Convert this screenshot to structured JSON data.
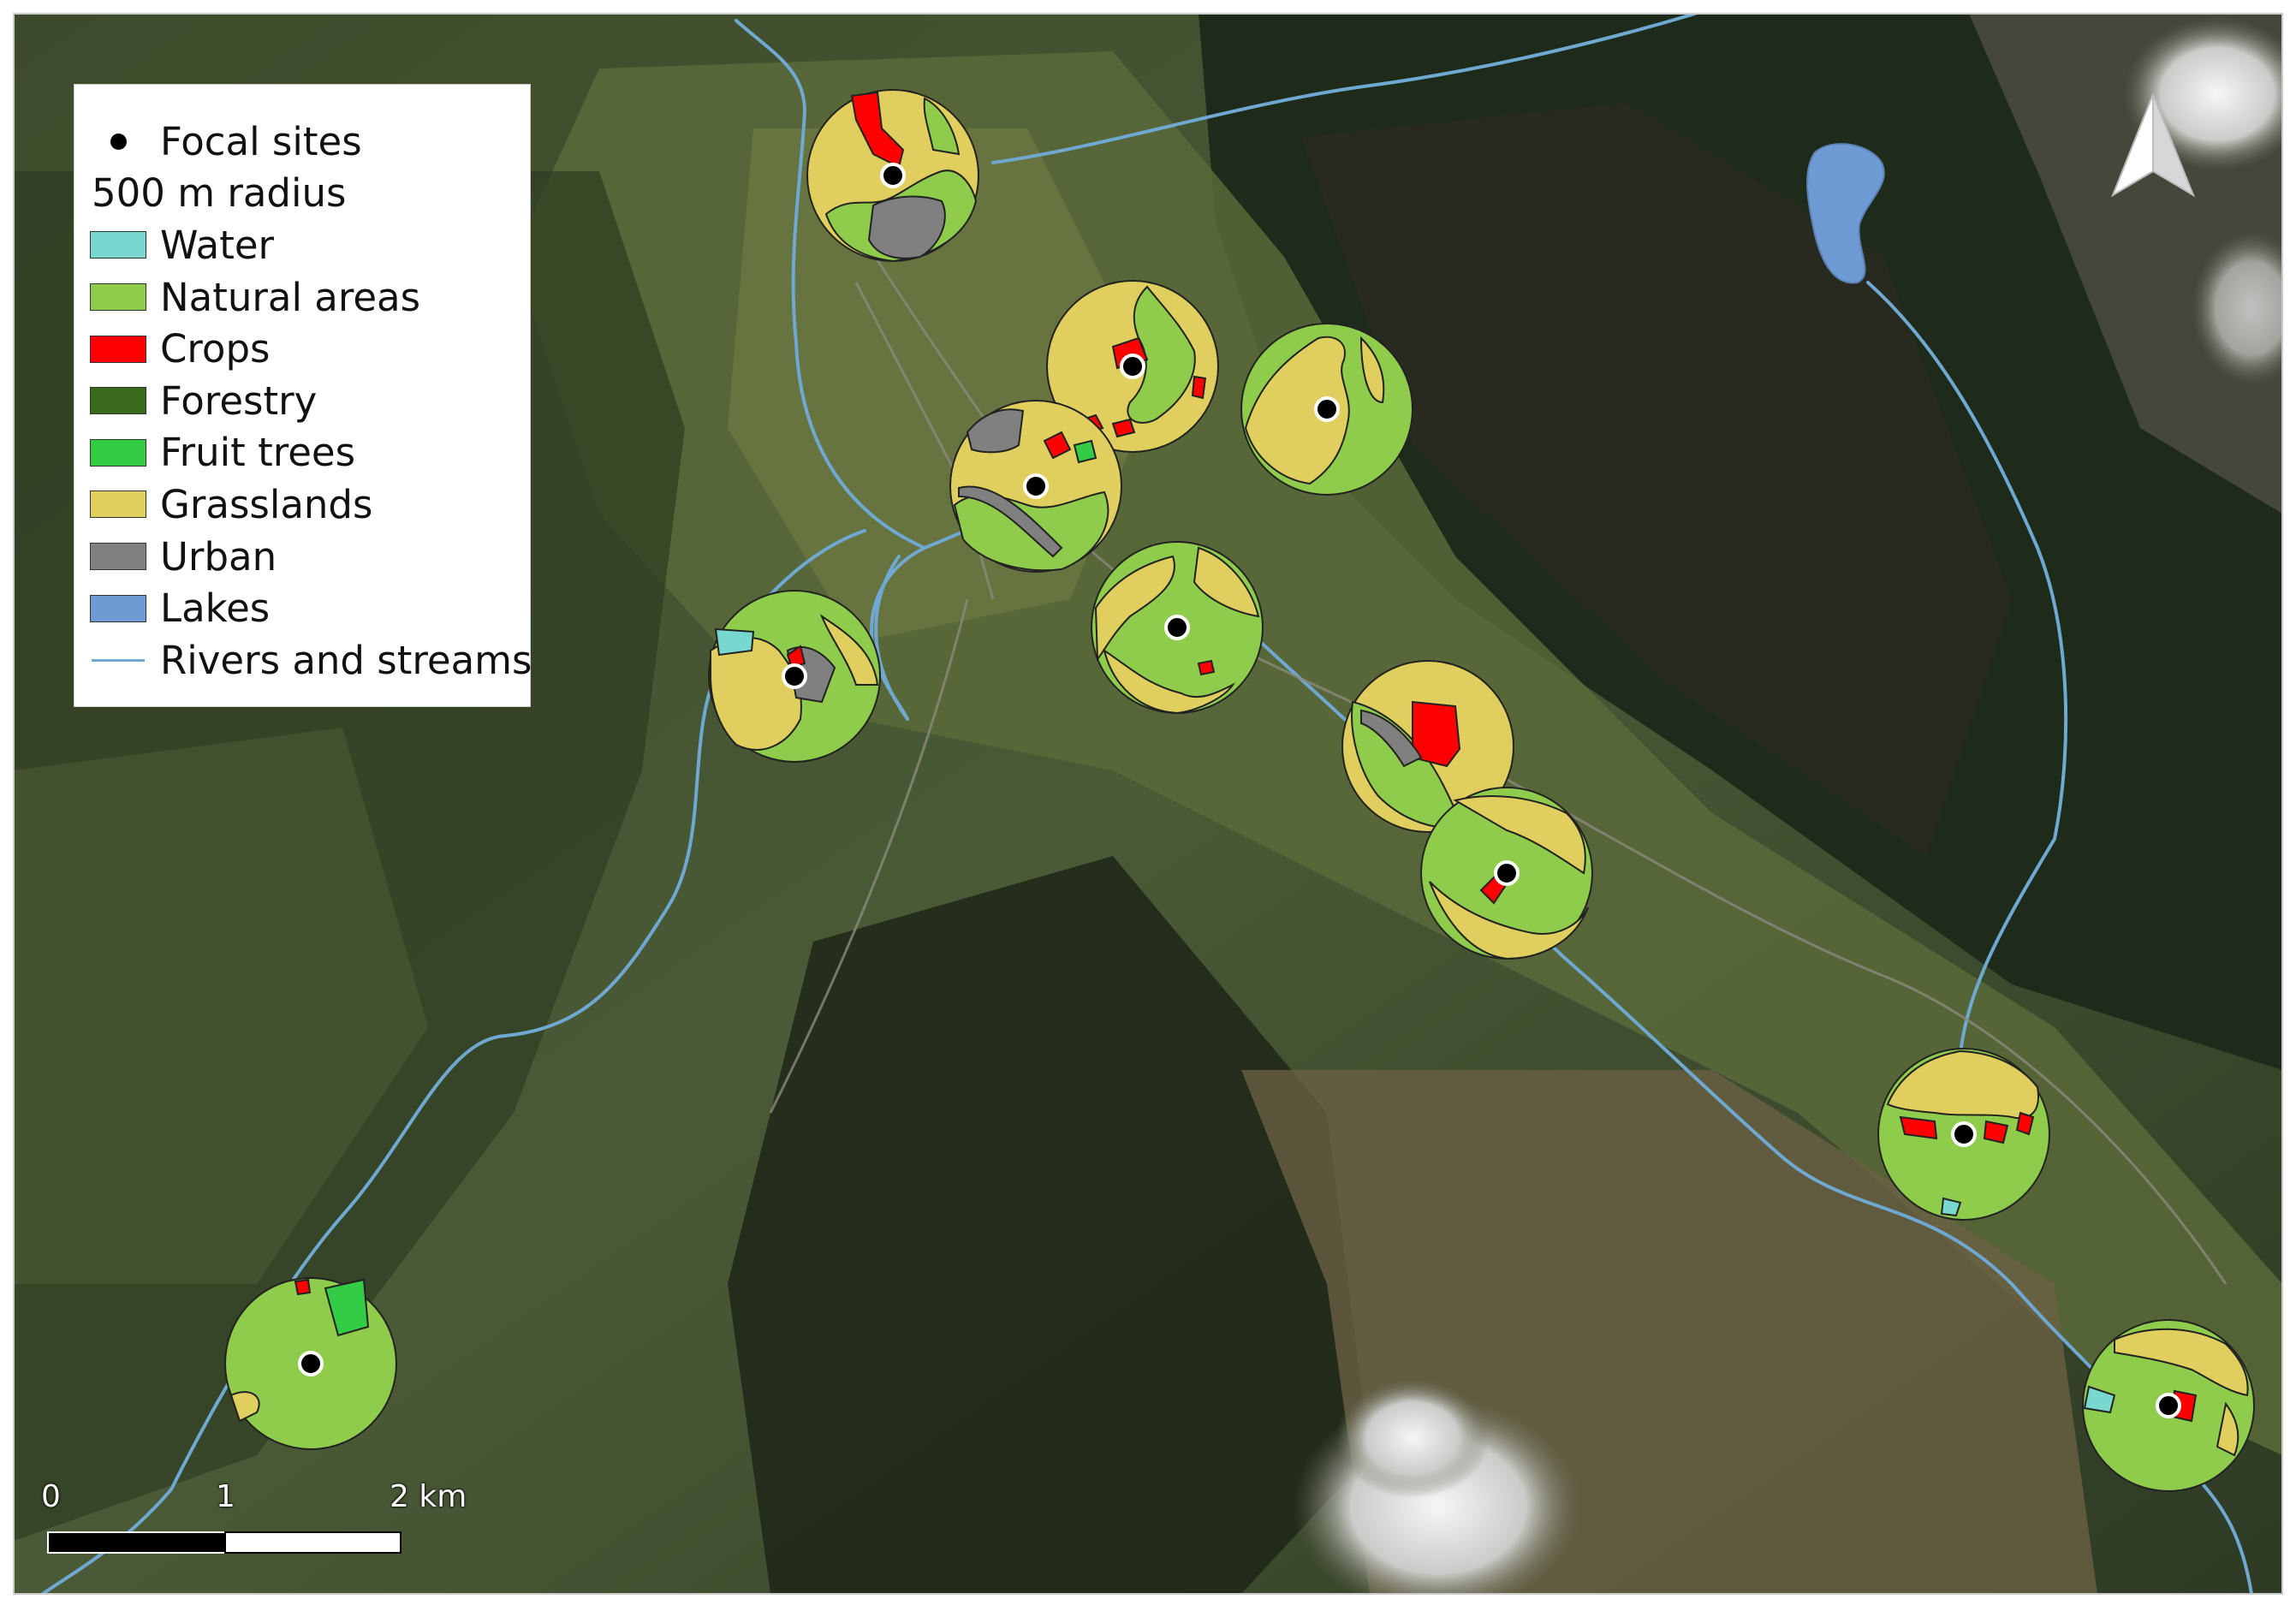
{
  "legend": {
    "focal_sites": "Focal sites",
    "radius_heading": "500 m radius",
    "classes": [
      {
        "label": "Water",
        "color": "#78d8d0"
      },
      {
        "label": "Natural areas",
        "color": "#8fcc4c"
      },
      {
        "label": "Crops",
        "color": "#ff0000"
      },
      {
        "label": "Forestry",
        "color": "#3a6a1e"
      },
      {
        "label": "Fruit trees",
        "color": "#33cc44"
      },
      {
        "label": "Grasslands",
        "color": "#e0cf5e"
      },
      {
        "label": "Urban",
        "color": "#808080"
      },
      {
        "label": "Lakes",
        "color": "#6f9bd4"
      }
    ],
    "rivers": "Rivers and streams",
    "river_color": "#6fa8d0"
  },
  "scale_bar": {
    "labels": [
      "0",
      "1",
      "2 km"
    ]
  },
  "north_arrow": "north-arrow-icon",
  "focal_site_count": 11
}
